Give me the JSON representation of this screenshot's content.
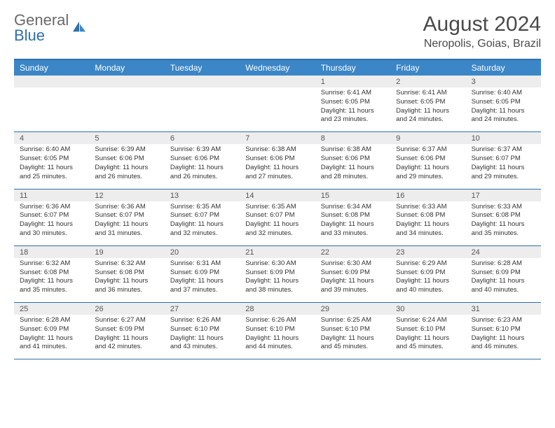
{
  "logo": {
    "text_gray": "General",
    "text_blue": "Blue"
  },
  "header": {
    "month_title": "August 2024",
    "location": "Neropolis, Goias, Brazil"
  },
  "colors": {
    "accent": "#3b86c6",
    "accent_dark": "#2f6fab",
    "daynum_bg": "#ededed",
    "text": "#333333",
    "title_text": "#4a4a4a"
  },
  "day_names": [
    "Sunday",
    "Monday",
    "Tuesday",
    "Wednesday",
    "Thursday",
    "Friday",
    "Saturday"
  ],
  "weeks": [
    [
      {
        "n": "",
        "lines": []
      },
      {
        "n": "",
        "lines": []
      },
      {
        "n": "",
        "lines": []
      },
      {
        "n": "",
        "lines": []
      },
      {
        "n": "1",
        "lines": [
          "Sunrise: 6:41 AM",
          "Sunset: 6:05 PM",
          "Daylight: 11 hours",
          "and 23 minutes."
        ]
      },
      {
        "n": "2",
        "lines": [
          "Sunrise: 6:41 AM",
          "Sunset: 6:05 PM",
          "Daylight: 11 hours",
          "and 24 minutes."
        ]
      },
      {
        "n": "3",
        "lines": [
          "Sunrise: 6:40 AM",
          "Sunset: 6:05 PM",
          "Daylight: 11 hours",
          "and 24 minutes."
        ]
      }
    ],
    [
      {
        "n": "4",
        "lines": [
          "Sunrise: 6:40 AM",
          "Sunset: 6:05 PM",
          "Daylight: 11 hours",
          "and 25 minutes."
        ]
      },
      {
        "n": "5",
        "lines": [
          "Sunrise: 6:39 AM",
          "Sunset: 6:06 PM",
          "Daylight: 11 hours",
          "and 26 minutes."
        ]
      },
      {
        "n": "6",
        "lines": [
          "Sunrise: 6:39 AM",
          "Sunset: 6:06 PM",
          "Daylight: 11 hours",
          "and 26 minutes."
        ]
      },
      {
        "n": "7",
        "lines": [
          "Sunrise: 6:38 AM",
          "Sunset: 6:06 PM",
          "Daylight: 11 hours",
          "and 27 minutes."
        ]
      },
      {
        "n": "8",
        "lines": [
          "Sunrise: 6:38 AM",
          "Sunset: 6:06 PM",
          "Daylight: 11 hours",
          "and 28 minutes."
        ]
      },
      {
        "n": "9",
        "lines": [
          "Sunrise: 6:37 AM",
          "Sunset: 6:06 PM",
          "Daylight: 11 hours",
          "and 29 minutes."
        ]
      },
      {
        "n": "10",
        "lines": [
          "Sunrise: 6:37 AM",
          "Sunset: 6:07 PM",
          "Daylight: 11 hours",
          "and 29 minutes."
        ]
      }
    ],
    [
      {
        "n": "11",
        "lines": [
          "Sunrise: 6:36 AM",
          "Sunset: 6:07 PM",
          "Daylight: 11 hours",
          "and 30 minutes."
        ]
      },
      {
        "n": "12",
        "lines": [
          "Sunrise: 6:36 AM",
          "Sunset: 6:07 PM",
          "Daylight: 11 hours",
          "and 31 minutes."
        ]
      },
      {
        "n": "13",
        "lines": [
          "Sunrise: 6:35 AM",
          "Sunset: 6:07 PM",
          "Daylight: 11 hours",
          "and 32 minutes."
        ]
      },
      {
        "n": "14",
        "lines": [
          "Sunrise: 6:35 AM",
          "Sunset: 6:07 PM",
          "Daylight: 11 hours",
          "and 32 minutes."
        ]
      },
      {
        "n": "15",
        "lines": [
          "Sunrise: 6:34 AM",
          "Sunset: 6:08 PM",
          "Daylight: 11 hours",
          "and 33 minutes."
        ]
      },
      {
        "n": "16",
        "lines": [
          "Sunrise: 6:33 AM",
          "Sunset: 6:08 PM",
          "Daylight: 11 hours",
          "and 34 minutes."
        ]
      },
      {
        "n": "17",
        "lines": [
          "Sunrise: 6:33 AM",
          "Sunset: 6:08 PM",
          "Daylight: 11 hours",
          "and 35 minutes."
        ]
      }
    ],
    [
      {
        "n": "18",
        "lines": [
          "Sunrise: 6:32 AM",
          "Sunset: 6:08 PM",
          "Daylight: 11 hours",
          "and 35 minutes."
        ]
      },
      {
        "n": "19",
        "lines": [
          "Sunrise: 6:32 AM",
          "Sunset: 6:08 PM",
          "Daylight: 11 hours",
          "and 36 minutes."
        ]
      },
      {
        "n": "20",
        "lines": [
          "Sunrise: 6:31 AM",
          "Sunset: 6:09 PM",
          "Daylight: 11 hours",
          "and 37 minutes."
        ]
      },
      {
        "n": "21",
        "lines": [
          "Sunrise: 6:30 AM",
          "Sunset: 6:09 PM",
          "Daylight: 11 hours",
          "and 38 minutes."
        ]
      },
      {
        "n": "22",
        "lines": [
          "Sunrise: 6:30 AM",
          "Sunset: 6:09 PM",
          "Daylight: 11 hours",
          "and 39 minutes."
        ]
      },
      {
        "n": "23",
        "lines": [
          "Sunrise: 6:29 AM",
          "Sunset: 6:09 PM",
          "Daylight: 11 hours",
          "and 40 minutes."
        ]
      },
      {
        "n": "24",
        "lines": [
          "Sunrise: 6:28 AM",
          "Sunset: 6:09 PM",
          "Daylight: 11 hours",
          "and 40 minutes."
        ]
      }
    ],
    [
      {
        "n": "25",
        "lines": [
          "Sunrise: 6:28 AM",
          "Sunset: 6:09 PM",
          "Daylight: 11 hours",
          "and 41 minutes."
        ]
      },
      {
        "n": "26",
        "lines": [
          "Sunrise: 6:27 AM",
          "Sunset: 6:09 PM",
          "Daylight: 11 hours",
          "and 42 minutes."
        ]
      },
      {
        "n": "27",
        "lines": [
          "Sunrise: 6:26 AM",
          "Sunset: 6:10 PM",
          "Daylight: 11 hours",
          "and 43 minutes."
        ]
      },
      {
        "n": "28",
        "lines": [
          "Sunrise: 6:26 AM",
          "Sunset: 6:10 PM",
          "Daylight: 11 hours",
          "and 44 minutes."
        ]
      },
      {
        "n": "29",
        "lines": [
          "Sunrise: 6:25 AM",
          "Sunset: 6:10 PM",
          "Daylight: 11 hours",
          "and 45 minutes."
        ]
      },
      {
        "n": "30",
        "lines": [
          "Sunrise: 6:24 AM",
          "Sunset: 6:10 PM",
          "Daylight: 11 hours",
          "and 45 minutes."
        ]
      },
      {
        "n": "31",
        "lines": [
          "Sunrise: 6:23 AM",
          "Sunset: 6:10 PM",
          "Daylight: 11 hours",
          "and 46 minutes."
        ]
      }
    ]
  ]
}
